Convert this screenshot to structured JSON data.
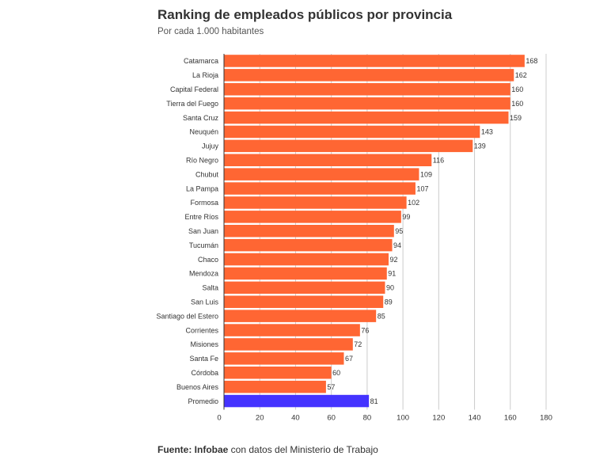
{
  "header": {
    "title": "Ranking de empleados públicos por provincia",
    "subtitle": "Por cada 1.000 habitantes"
  },
  "footer": {
    "source_label": "Fuente: Infobae",
    "source_rest": " con datos del Ministerio de Trabajo"
  },
  "chart_data": {
    "type": "bar",
    "orientation": "horizontal",
    "title": "Ranking de empleados públicos por provincia",
    "subtitle": "Por cada 1.000 habitantes",
    "categories": [
      "Catamarca",
      "La Rioja",
      "Capital Federal",
      "Tierra del Fuego",
      "Santa Cruz",
      "Neuquén",
      "Jujuy",
      "Río Negro",
      "Chubut",
      "La Pampa",
      "Formosa",
      "Entre Ríos",
      "San Juan",
      "Tucumán",
      "Chaco",
      "Mendoza",
      "Salta",
      "San Luis",
      "Santiago del Estero",
      "Corrientes",
      "Misiones",
      "Santa Fe",
      "Córdoba",
      "Buenos Aires",
      "Promedio"
    ],
    "values": [
      168,
      162,
      160,
      160,
      159,
      143,
      139,
      116,
      109,
      107,
      102,
      99,
      95,
      94,
      92,
      91,
      90,
      89,
      85,
      76,
      72,
      67,
      60,
      57,
      81
    ],
    "highlight_category": "Promedio",
    "xlim": [
      0,
      180
    ],
    "xticks": [
      0,
      20,
      40,
      60,
      80,
      100,
      120,
      140,
      160,
      180
    ],
    "grid": true,
    "colors": {
      "bar": "#ff6633",
      "highlight": "#4433ff"
    }
  }
}
